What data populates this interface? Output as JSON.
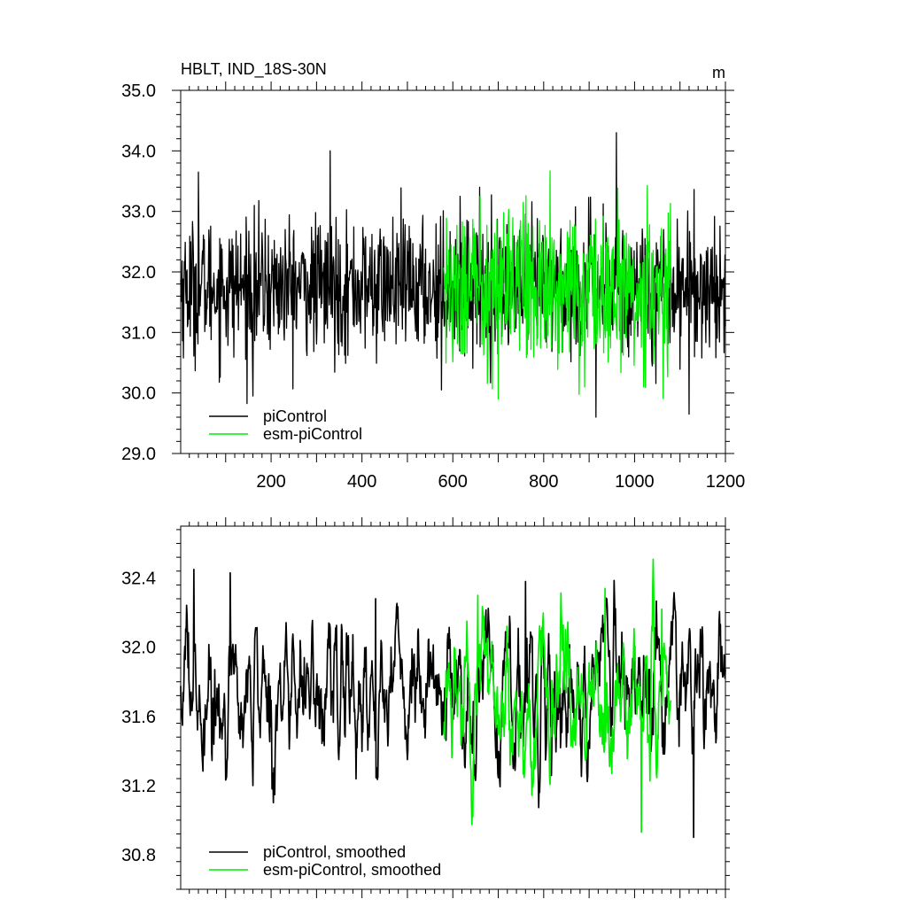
{
  "chart_data": [
    {
      "type": "line",
      "title": "HBLT, IND_18S-30N",
      "units": "m",
      "xlabel": "",
      "ylabel": "",
      "xlim": [
        1,
        1200
      ],
      "ylim": [
        29.0,
        35.0
      ],
      "x_ticks": [
        200,
        400,
        600,
        800,
        1000,
        1200
      ],
      "x_tick_labels": [
        "200",
        "400",
        "600",
        "800",
        "1000",
        "1200"
      ],
      "y_ticks": [
        29.0,
        30.0,
        31.0,
        32.0,
        33.0,
        34.0,
        35.0
      ],
      "y_tick_labels": [
        "29.0",
        "30.0",
        "31.0",
        "32.0",
        "33.0",
        "34.0",
        "35.0"
      ],
      "legend_position": "bottom-left",
      "series": [
        {
          "name": "piControl",
          "color": "#000000",
          "x_range": [
            1,
            1200
          ],
          "mean": 31.75,
          "std": 0.55,
          "smoothed": false,
          "anchors": [
            [
              40,
              33.65
            ],
            [
              160,
              29.95
            ],
            [
              330,
              34.0
            ],
            [
              575,
              30.05
            ],
            [
              915,
              29.6
            ],
            [
              960,
              34.3
            ],
            [
              1120,
              29.65
            ]
          ]
        },
        {
          "name": "esm-piControl",
          "color": "#00ee00",
          "x_range": [
            580,
            1080
          ],
          "mean": 31.7,
          "std": 0.6,
          "smoothed": false,
          "anchors": [
            [
              660,
              33.25
            ],
            [
              700,
              29.9
            ],
            [
              755,
              33.15
            ],
            [
              890,
              30.1
            ],
            [
              1020,
              30.1
            ]
          ]
        }
      ]
    },
    {
      "type": "line",
      "title": "",
      "xlabel": "",
      "ylabel": "",
      "xlim": [
        1,
        1200
      ],
      "ylim": [
        30.6,
        32.7
      ],
      "x_ticks": [
        200,
        400,
        600,
        800,
        1000,
        1200
      ],
      "y_ticks": [
        30.8,
        31.2,
        31.6,
        32.0,
        32.4
      ],
      "y_tick_labels": [
        "30.8",
        "31.2",
        "31.6",
        "32.0",
        "32.4"
      ],
      "legend_position": "bottom-left",
      "series": [
        {
          "name": "piControl, smoothed",
          "color": "#000000",
          "x_range": [
            1,
            1200
          ],
          "mean": 31.75,
          "std": 0.22,
          "smoothed": true,
          "anchors": [
            [
              30,
              32.45
            ],
            [
              110,
              32.43
            ],
            [
              160,
              31.2
            ],
            [
              430,
              32.28
            ],
            [
              500,
              31.35
            ],
            [
              760,
              32.38
            ],
            [
              1130,
              30.9
            ]
          ]
        },
        {
          "name": "esm-piControl, smoothed",
          "color": "#00ee00",
          "x_range": [
            580,
            1080
          ],
          "mean": 31.7,
          "std": 0.23,
          "smoothed": true,
          "anchors": [
            [
              655,
              32.3
            ],
            [
              935,
              32.34
            ],
            [
              1015,
              30.93
            ],
            [
              1060,
              32.22
            ]
          ]
        }
      ]
    }
  ]
}
